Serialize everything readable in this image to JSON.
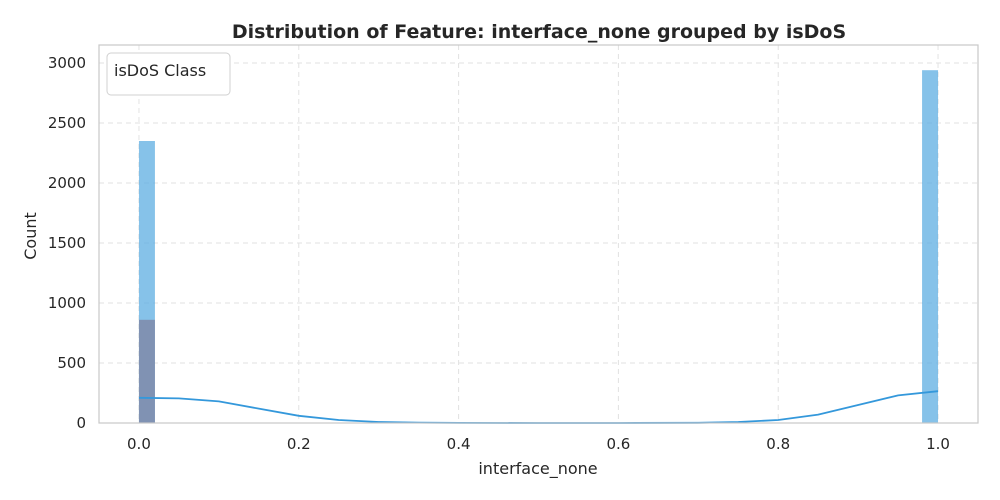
{
  "chart_data": {
    "type": "bar",
    "title": "Distribution of Feature: interface_none grouped by isDoS",
    "xlabel": "interface_none",
    "ylabel": "Count",
    "xlim": [
      -0.05,
      1.05
    ],
    "ylim": [
      0,
      3150
    ],
    "x_ticks": [
      "0.0",
      "0.2",
      "0.4",
      "0.6",
      "0.8",
      "1.0"
    ],
    "x_tick_values": [
      0,
      0.2,
      0.4,
      0.6,
      0.8,
      1.0
    ],
    "y_ticks": [
      "0",
      "500",
      "1000",
      "1500",
      "2000",
      "2500",
      "3000"
    ],
    "y_tick_values": [
      0,
      500,
      1000,
      1500,
      2000,
      2500,
      3000
    ],
    "grid": true,
    "bin_width": 0.02,
    "legend": {
      "title": "isDoS Class",
      "placement": "top-left"
    },
    "series": [
      {
        "color": "#5dade2",
        "opacity": 0.75,
        "bars": [
          {
            "x": 0.0,
            "value": 2350
          },
          {
            "x": 0.98,
            "value": 2940
          }
        ]
      },
      {
        "color": "#7f8fb0",
        "opacity": 0.95,
        "bars": [
          {
            "x": 0.0,
            "value": 860
          }
        ]
      }
    ],
    "kde": {
      "color": "#3498db",
      "points": [
        [
          0.0,
          210
        ],
        [
          0.05,
          205
        ],
        [
          0.1,
          180
        ],
        [
          0.15,
          120
        ],
        [
          0.2,
          60
        ],
        [
          0.25,
          25
        ],
        [
          0.3,
          8
        ],
        [
          0.35,
          3
        ],
        [
          0.4,
          1
        ],
        [
          0.5,
          0
        ],
        [
          0.6,
          0
        ],
        [
          0.7,
          2
        ],
        [
          0.75,
          8
        ],
        [
          0.8,
          25
        ],
        [
          0.85,
          70
        ],
        [
          0.9,
          150
        ],
        [
          0.95,
          230
        ],
        [
          1.0,
          265
        ]
      ]
    }
  }
}
